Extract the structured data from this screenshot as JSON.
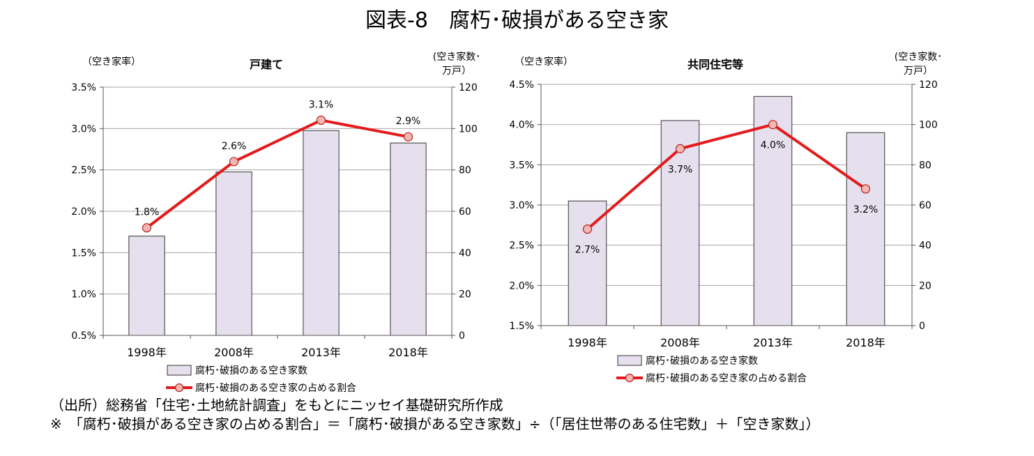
{
  "title": "図表-8　腐朽･破損がある空き家",
  "chart_data": [
    {
      "type": "bar+line",
      "title": "戸建て",
      "ylabel_left": "（空き家率）",
      "ylabel_right_line1": "(空き家数･",
      "ylabel_right_line2": "万戸）",
      "categories": [
        "1998年",
        "2008年",
        "2013年",
        "2018年"
      ],
      "left_axis": {
        "min": 0.005,
        "max": 0.035,
        "ticks": [
          "0.5%",
          "1.0%",
          "1.5%",
          "2.0%",
          "2.5%",
          "3.0%",
          "3.5%"
        ],
        "tick_values": [
          0.005,
          0.01,
          0.015,
          0.02,
          0.025,
          0.03,
          0.035
        ]
      },
      "right_axis": {
        "min": 0,
        "max": 120,
        "ticks": [
          "0",
          "20",
          "40",
          "60",
          "80",
          "100",
          "120"
        ],
        "tick_values": [
          0,
          20,
          40,
          60,
          80,
          100,
          120
        ]
      },
      "series": [
        {
          "name": "腐朽･破損のある空き家数",
          "kind": "bar",
          "axis": "right",
          "values": [
            48,
            79,
            99,
            93
          ]
        },
        {
          "name": "腐朽･破損のある空き家の占める割合",
          "kind": "line",
          "axis": "left",
          "values": [
            0.018,
            0.026,
            0.031,
            0.029
          ],
          "labels": [
            "1.8%",
            "2.6%",
            "3.1%",
            "2.9%"
          ]
        }
      ],
      "label_position": "above",
      "grid": true,
      "legend_position": "bottom"
    },
    {
      "type": "bar+line",
      "title": "共同住宅等",
      "ylabel_left": "（空き家率）",
      "ylabel_right_line1": "(空き家数･",
      "ylabel_right_line2": "万戸）",
      "categories": [
        "1998年",
        "2008年",
        "2013年",
        "2018年"
      ],
      "left_axis": {
        "min": 0.015,
        "max": 0.045,
        "ticks": [
          "1.5%",
          "2.0%",
          "2.5%",
          "3.0%",
          "3.5%",
          "4.0%",
          "4.5%"
        ],
        "tick_values": [
          0.015,
          0.02,
          0.025,
          0.03,
          0.035,
          0.04,
          0.045
        ]
      },
      "right_axis": {
        "min": 0,
        "max": 120,
        "ticks": [
          "0",
          "20",
          "40",
          "60",
          "80",
          "100",
          "120"
        ],
        "tick_values": [
          0,
          20,
          40,
          60,
          80,
          100,
          120
        ]
      },
      "series": [
        {
          "name": "腐朽･破損のある空き家数",
          "kind": "bar",
          "axis": "right",
          "values": [
            62,
            102,
            114,
            96
          ]
        },
        {
          "name": "腐朽･破損のある空き家の占める割合",
          "kind": "line",
          "axis": "left",
          "values": [
            0.027,
            0.037,
            0.04,
            0.032
          ],
          "labels": [
            "2.7%",
            "3.7%",
            "4.0%",
            "3.2%"
          ]
        }
      ],
      "label_position": "below",
      "grid": true,
      "legend_position": "bottom"
    }
  ],
  "colors": {
    "bar_fill": "#e6e0ee",
    "bar_stroke": "#333333",
    "line": "#e41a1c",
    "marker_fill": "#f4b6b0",
    "marker_stroke": "#b22222",
    "grid": "#a6a6a6"
  },
  "notes": {
    "source": "（出所）総務省「住宅･土地統計調査」をもとにニッセイ基礎研究所作成",
    "formula": "※　「腐朽･破損がある空き家の占める割合」＝「腐朽･破損がある空き家数」÷（「居住世帯のある住宅数」＋「空き家数」）"
  }
}
